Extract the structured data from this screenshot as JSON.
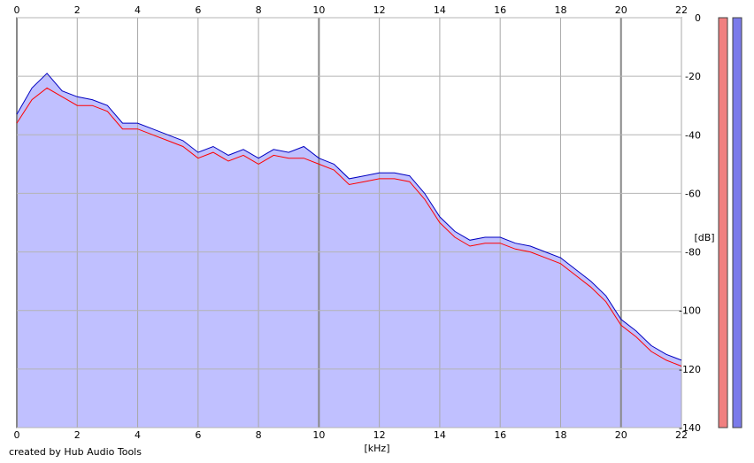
{
  "footer": {
    "credit": "created by Hub Audio Tools"
  },
  "chart_data": {
    "type": "area",
    "xlabel": "[kHz]",
    "ylabel": "[dB]",
    "xlim": [
      0,
      22
    ],
    "ylim": [
      -140,
      0
    ],
    "x_ticks": [
      "0",
      "2",
      "4",
      "6",
      "8",
      "10",
      "12",
      "14",
      "16",
      "18",
      "20",
      "22"
    ],
    "y_ticks": [
      "0",
      "-20",
      "-40",
      "-60",
      "-80",
      "-100",
      "-120",
      "-140"
    ],
    "grid": true,
    "fill_color": "#c0c0ff",
    "series": [
      {
        "color": "#ff0000",
        "x": [
          0,
          0.5,
          1,
          1.5,
          2,
          2.5,
          3,
          3.5,
          4,
          4.5,
          5,
          5.5,
          6,
          6.5,
          7,
          7.5,
          8,
          8.5,
          9,
          9.5,
          10,
          10.5,
          11,
          11.5,
          12,
          12.5,
          13,
          13.5,
          14,
          14.5,
          15,
          15.5,
          16,
          16.5,
          17,
          17.5,
          18,
          18.5,
          19,
          19.5,
          20,
          20.5,
          21,
          21.5,
          22
        ],
        "y": [
          -36,
          -28,
          -24,
          -27,
          -30,
          -30,
          -32,
          -38,
          -38,
          -40,
          -42,
          -44,
          -48,
          -46,
          -49,
          -47,
          -50,
          -47,
          -48,
          -48,
          -50,
          -52,
          -57,
          -56,
          -55,
          -55,
          -56,
          -62,
          -70,
          -75,
          -78,
          -77,
          -77,
          -79,
          -80,
          -82,
          -84,
          -88,
          -92,
          -97,
          -105,
          -109,
          -114,
          -117,
          -119
        ]
      },
      {
        "color": "#0000c0",
        "x": [
          0,
          0.5,
          1,
          1.5,
          2,
          2.5,
          3,
          3.5,
          4,
          4.5,
          5,
          5.5,
          6,
          6.5,
          7,
          7.5,
          8,
          8.5,
          9,
          9.5,
          10,
          10.5,
          11,
          11.5,
          12,
          12.5,
          13,
          13.5,
          14,
          14.5,
          15,
          15.5,
          16,
          16.5,
          17,
          17.5,
          18,
          18.5,
          19,
          19.5,
          20,
          20.5,
          21,
          21.5,
          22
        ],
        "y": [
          -33,
          -24,
          -19,
          -25,
          -27,
          -28,
          -30,
          -36,
          -36,
          -38,
          -40,
          -42,
          -46,
          -44,
          -47,
          -45,
          -48,
          -45,
          -46,
          -44,
          -48,
          -50,
          -55,
          -54,
          -53,
          -53,
          -54,
          -60,
          -68,
          -73,
          -76,
          -75,
          -75,
          -77,
          -78,
          -80,
          -82,
          -86,
          -90,
          -95,
          -103,
          -107,
          -112,
          -115,
          -117
        ]
      }
    ],
    "level_meters": [
      {
        "color": "#f08080"
      },
      {
        "color": "#7b7bea"
      }
    ]
  }
}
